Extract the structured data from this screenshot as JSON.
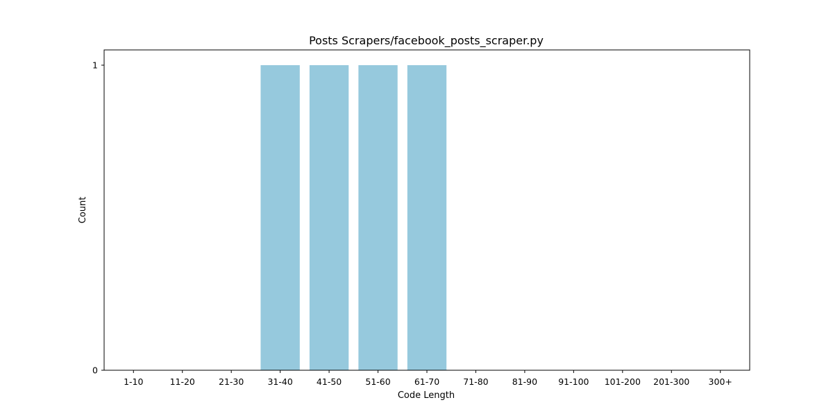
{
  "chart_data": {
    "type": "bar",
    "title": "Posts Scrapers/facebook_posts_scraper.py",
    "xlabel": "Code Length",
    "ylabel": "Count",
    "categories": [
      "1-10",
      "11-20",
      "21-30",
      "31-40",
      "41-50",
      "51-60",
      "61-70",
      "71-80",
      "81-90",
      "91-100",
      "101-200",
      "201-300",
      "300+"
    ],
    "values": [
      0,
      0,
      0,
      1,
      1,
      1,
      1,
      0,
      0,
      0,
      0,
      0,
      0
    ],
    "ylim": [
      0,
      1.05
    ],
    "yticks": [
      0,
      1
    ],
    "bar_color": "#96c9dd",
    "grid": false,
    "legend": "none"
  }
}
